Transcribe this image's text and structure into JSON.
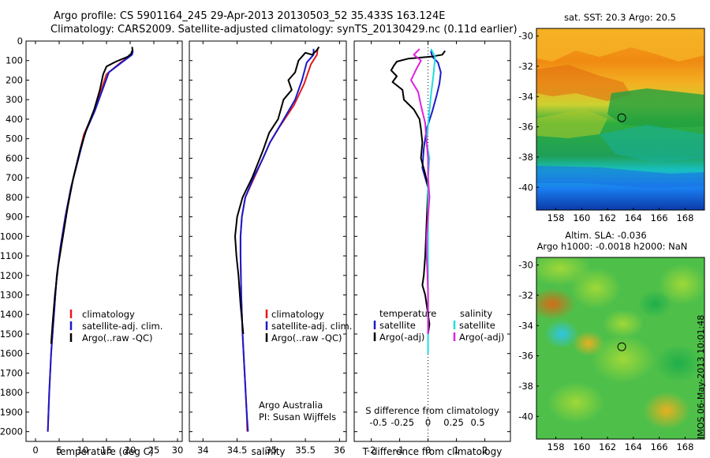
{
  "title_lines": [
    "Argo profile: CS 5901164_245 29-Apr-2013 20130503_52 35.433S 163.124E",
    "Climatology: CARS2009. Satellite-adjusted climatology: synTS_20130429.nc (0.11d earlier)"
  ],
  "map_top_title": "sat. SST: 20.3 Argo: 20.5",
  "map_bottom_title_lines": [
    "Altim. SLA: -0.036",
    "Argo h1000: -0.0018 h2000: NaN"
  ],
  "side_stamp": "IMOS 06-May-2013 10:01:48",
  "credit_lines": [
    "Argo Australia",
    "PI: Susan Wijffels"
  ],
  "colors": {
    "climatology": "#e41a1c",
    "satellite": "#1a1acc",
    "argo": "#000000",
    "sal_satellite": "#22dddd",
    "sal_argo": "#dd22dd"
  },
  "chart_data": [
    {
      "type": "line",
      "id": "temperature",
      "xlabel": "temperature (deg C)",
      "ylabel": "",
      "xlim": [
        -2,
        31
      ],
      "ylim": [
        2050,
        0
      ],
      "xticks": [
        0,
        5,
        10,
        15,
        20,
        25,
        30
      ],
      "yticks": [
        0,
        100,
        200,
        300,
        400,
        500,
        600,
        700,
        800,
        900,
        1000,
        1100,
        1200,
        1300,
        1400,
        1500,
        1600,
        1700,
        1800,
        1900,
        2000
      ],
      "legend": {
        "placement": "lower-center",
        "entries": [
          "climatology",
          "satellite-adj. clim.",
          "Argo(..raw -QC)"
        ]
      },
      "series": [
        {
          "name": "climatology",
          "color_key": "climatology",
          "points": [
            [
              20.5,
              50
            ],
            [
              20.3,
              70
            ],
            [
              18,
              110
            ],
            [
              15,
              170
            ],
            [
              13.5,
              280
            ],
            [
              12,
              380
            ],
            [
              10.2,
              480
            ],
            [
              9,
              600
            ],
            [
              7.5,
              750
            ],
            [
              6.3,
              900
            ],
            [
              5.3,
              1050
            ],
            [
              4.5,
              1200
            ],
            [
              3.9,
              1400
            ],
            [
              3.3,
              1600
            ],
            [
              2.9,
              1800
            ],
            [
              2.6,
              2000
            ]
          ]
        },
        {
          "name": "satellite-adj. clim.",
          "color_key": "satellite",
          "points": [
            [
              20.6,
              50
            ],
            [
              20.4,
              70
            ],
            [
              18.2,
              110
            ],
            [
              15.5,
              160
            ],
            [
              14,
              260
            ],
            [
              12.5,
              360
            ],
            [
              10.5,
              470
            ],
            [
              9.1,
              600
            ],
            [
              7.5,
              750
            ],
            [
              6.3,
              900
            ],
            [
              5.3,
              1050
            ],
            [
              4.5,
              1200
            ],
            [
              3.9,
              1400
            ],
            [
              3.3,
              1600
            ],
            [
              2.9,
              1800
            ],
            [
              2.6,
              2000
            ]
          ]
        },
        {
          "name": "Argo(..raw -QC)",
          "color_key": "argo",
          "points": [
            [
              20.4,
              30
            ],
            [
              20.5,
              45
            ],
            [
              20.2,
              65
            ],
            [
              19.5,
              80
            ],
            [
              17,
              105
            ],
            [
              15,
              130
            ],
            [
              14.3,
              170
            ],
            [
              13.6,
              250
            ],
            [
              12.4,
              350
            ],
            [
              10.8,
              450
            ],
            [
              9.5,
              550
            ],
            [
              8,
              700
            ],
            [
              6.8,
              850
            ],
            [
              5.8,
              1000
            ],
            [
              4.8,
              1150
            ],
            [
              4.1,
              1300
            ],
            [
              3.6,
              1450
            ],
            [
              3.3,
              1550
            ]
          ]
        }
      ]
    },
    {
      "type": "line",
      "id": "salinity",
      "xlabel": "salinity",
      "xlim": [
        33.8,
        36.1
      ],
      "ylim": [
        2050,
        0
      ],
      "xticks": [
        34,
        34.5,
        35,
        35.5,
        36
      ],
      "legend": {
        "placement": "lower-right",
        "entries": [
          "climatology",
          "satellite-adj. clim.",
          "Argo(..raw -QC)"
        ]
      },
      "series": [
        {
          "name": "climatology",
          "color_key": "climatology",
          "points": [
            [
              35.68,
              40
            ],
            [
              35.67,
              70
            ],
            [
              35.58,
              120
            ],
            [
              35.48,
              220
            ],
            [
              35.33,
              330
            ],
            [
              35.12,
              440
            ],
            [
              34.98,
              520
            ],
            [
              34.88,
              600
            ],
            [
              34.75,
              700
            ],
            [
              34.62,
              800
            ],
            [
              34.57,
              900
            ],
            [
              34.55,
              1000
            ],
            [
              34.55,
              1100
            ],
            [
              34.56,
              1300
            ],
            [
              34.58,
              1500
            ],
            [
              34.61,
              1700
            ],
            [
              34.64,
              1900
            ],
            [
              34.65,
              2000
            ]
          ]
        },
        {
          "name": "satellite-adj. clim.",
          "color_key": "satellite",
          "points": [
            [
              35.62,
              40
            ],
            [
              35.62,
              70
            ],
            [
              35.52,
              110
            ],
            [
              35.45,
              200
            ],
            [
              35.35,
              300
            ],
            [
              35.15,
              420
            ],
            [
              34.98,
              520
            ],
            [
              34.88,
              600
            ],
            [
              34.74,
              700
            ],
            [
              34.62,
              800
            ],
            [
              34.57,
              900
            ],
            [
              34.55,
              1000
            ],
            [
              34.55,
              1100
            ],
            [
              34.56,
              1300
            ],
            [
              34.58,
              1500
            ],
            [
              34.61,
              1700
            ],
            [
              34.64,
              1900
            ],
            [
              34.66,
              2000
            ]
          ]
        },
        {
          "name": "Argo(..raw -QC)",
          "color_key": "argo",
          "points": [
            [
              35.7,
              30
            ],
            [
              35.66,
              50
            ],
            [
              35.6,
              70
            ],
            [
              35.5,
              60
            ],
            [
              35.4,
              100
            ],
            [
              35.35,
              160
            ],
            [
              35.25,
              200
            ],
            [
              35.3,
              250
            ],
            [
              35.18,
              300
            ],
            [
              35.1,
              400
            ],
            [
              34.97,
              470
            ],
            [
              34.88,
              560
            ],
            [
              34.72,
              700
            ],
            [
              34.58,
              800
            ],
            [
              34.5,
              900
            ],
            [
              34.47,
              1000
            ],
            [
              34.49,
              1100
            ],
            [
              34.52,
              1200
            ],
            [
              34.55,
              1350
            ],
            [
              34.59,
              1500
            ]
          ]
        }
      ]
    },
    {
      "type": "line",
      "id": "difference",
      "xlabel": "T difference from climatology",
      "xlabel_top": "S difference from climatology",
      "xlim": [
        -2.6,
        2.9
      ],
      "ylim": [
        2050,
        0
      ],
      "xticks": [
        -2,
        -1,
        0,
        1,
        2
      ],
      "top_ticks": [
        {
          "pos": -1.75,
          "label": "-0.5"
        },
        {
          "pos": -0.9,
          "label": "-0.25"
        },
        {
          "pos": 0,
          "label": "0"
        },
        {
          "pos": 0.9,
          "label": "0.25"
        },
        {
          "pos": 1.75,
          "label": "0.5"
        }
      ],
      "zero_line": true,
      "legend": {
        "placement": "lower-center",
        "left_header": "temperature",
        "right_header": "salinity",
        "left_entries": [
          "satellite",
          "Argo(-adj)"
        ],
        "right_entries": [
          "satellite",
          "Argo(-adj)"
        ]
      },
      "series": [
        {
          "name": "temperature satellite",
          "color_key": "satellite",
          "points": [
            [
              0.1,
              50
            ],
            [
              0.15,
              80
            ],
            [
              0.35,
              110
            ],
            [
              0.45,
              160
            ],
            [
              0.4,
              220
            ],
            [
              0.3,
              280
            ],
            [
              0.15,
              360
            ],
            [
              -0.05,
              450
            ],
            [
              -0.15,
              550
            ],
            [
              -0.2,
              650
            ],
            [
              -0.1,
              700
            ],
            [
              0,
              750
            ],
            [
              0.05,
              800
            ]
          ]
        },
        {
          "name": "temperature Argo(-adj)",
          "color_key": "argo",
          "points": [
            [
              0.6,
              50
            ],
            [
              0.5,
              70
            ],
            [
              0.1,
              80
            ],
            [
              -0.7,
              90
            ],
            [
              -1.1,
              105
            ],
            [
              -1.2,
              125
            ],
            [
              -1.3,
              150
            ],
            [
              -1.1,
              180
            ],
            [
              -1.25,
              210
            ],
            [
              -0.9,
              250
            ],
            [
              -0.85,
              300
            ],
            [
              -0.5,
              350
            ],
            [
              -0.3,
              400
            ],
            [
              -0.25,
              450
            ],
            [
              -0.2,
              520
            ],
            [
              -0.25,
              600
            ],
            [
              -0.1,
              680
            ],
            [
              0,
              750
            ],
            [
              -0.1,
              1100
            ],
            [
              -0.15,
              1200
            ],
            [
              -0.2,
              1250
            ],
            [
              -0.1,
              1300
            ],
            [
              -0.05,
              1350
            ],
            [
              0,
              1400
            ],
            [
              0.05,
              1450
            ],
            [
              0,
              1500
            ]
          ]
        },
        {
          "name": "salinity satellite",
          "color_key": "sal_satellite",
          "points": [
            [
              0.1,
              40
            ],
            [
              0.25,
              80
            ],
            [
              0.2,
              160
            ],
            [
              0.1,
              280
            ],
            [
              0,
              430
            ],
            [
              -0.05,
              520
            ],
            [
              0.05,
              600
            ],
            [
              0,
              700
            ],
            [
              0,
              1600
            ]
          ]
        },
        {
          "name": "salinity Argo(-adj)",
          "color_key": "sal_argo",
          "points": [
            [
              -0.3,
              40
            ],
            [
              -0.5,
              70
            ],
            [
              -0.25,
              100
            ],
            [
              -0.4,
              140
            ],
            [
              -0.6,
              200
            ],
            [
              -0.35,
              260
            ],
            [
              -0.25,
              330
            ],
            [
              -0.1,
              420
            ],
            [
              -0.05,
              520
            ],
            [
              0,
              600
            ],
            [
              0,
              700
            ],
            [
              0.05,
              800
            ],
            [
              0,
              900
            ],
            [
              -0.05,
              1000
            ],
            [
              -0.05,
              1100
            ],
            [
              -0.02,
              1200
            ],
            [
              0,
              1300
            ],
            [
              0,
              1400
            ],
            [
              0,
              1500
            ]
          ]
        }
      ]
    },
    {
      "type": "heatmap",
      "id": "sst-map",
      "title": "sat. SST: 20.3 Argo: 20.5",
      "xlim": [
        156.5,
        169.5
      ],
      "ylim": [
        -41.5,
        -29.5
      ],
      "xticks": [
        158,
        160,
        162,
        164,
        166,
        168
      ],
      "yticks": [
        -30,
        -32,
        -34,
        -36,
        -38,
        -40
      ],
      "marker": [
        163.1,
        -35.4
      ]
    },
    {
      "type": "heatmap",
      "id": "sla-map",
      "title": "Altim. SLA: -0.036",
      "xlim": [
        156.5,
        169.5
      ],
      "ylim": [
        -41.5,
        -29.5
      ],
      "xticks": [
        158,
        160,
        162,
        164,
        166,
        168
      ],
      "yticks": [
        -30,
        -32,
        -34,
        -36,
        -38,
        -40
      ],
      "marker": [
        163.1,
        -35.4
      ]
    }
  ]
}
